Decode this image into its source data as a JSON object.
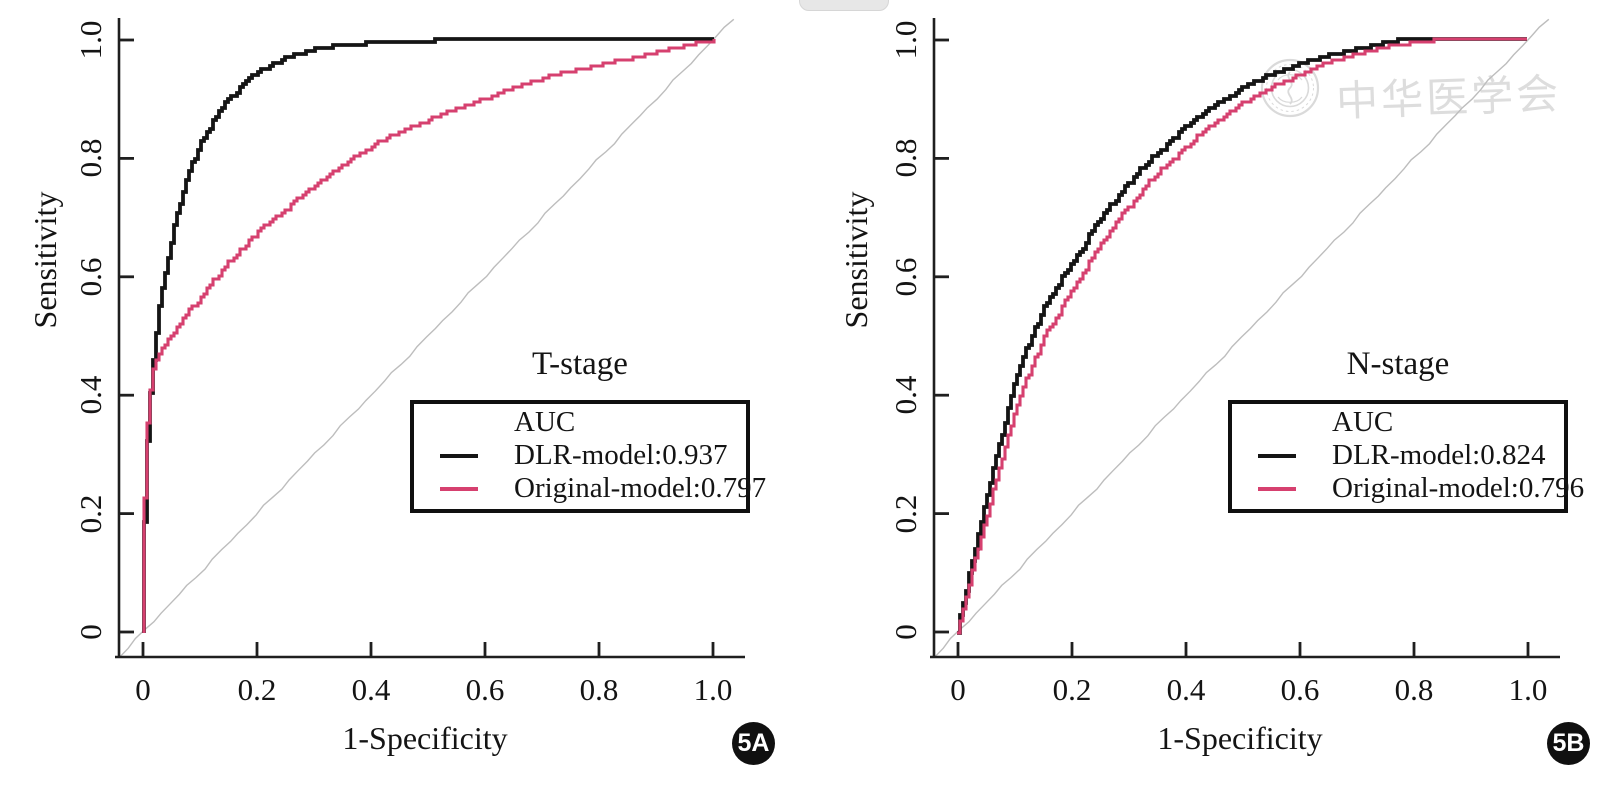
{
  "figure": {
    "panel_badges": [
      "5A",
      "5B"
    ],
    "watermark": {
      "text": "中华医学会",
      "emblem": "circular-society-seal"
    },
    "colors": {
      "axis": "#1f1f1f",
      "diagonal": "#bdbdbd",
      "dlr_curve": "#151515",
      "original_curve": "#d6406f",
      "watermark": "#d9d9d9",
      "badge_bg": "#101010",
      "badge_text": "#ffffff",
      "background": "#ffffff"
    }
  },
  "chart_data": [
    {
      "type": "line",
      "subtype": "roc-curve",
      "title": "T-stage",
      "xlabel": "1-Specificity",
      "ylabel": "Sensitivity",
      "xlim": [
        0,
        1
      ],
      "ylim": [
        0,
        1
      ],
      "grid": false,
      "legend_position": "lower-right",
      "legend_title": "AUC",
      "x_tick_labels": [
        "0",
        "0.2",
        "0.4",
        "0.6",
        "0.8",
        "1.0"
      ],
      "y_tick_labels": [
        "0",
        "0.2",
        "0.4",
        "0.6",
        "0.8",
        "1.0"
      ],
      "reference_line": {
        "from": [
          0,
          0
        ],
        "to": [
          1,
          1
        ],
        "color": "#bdbdbd"
      },
      "series": [
        {
          "name": "DLR-model",
          "auc": 0.937,
          "label": "DLR-model:0.937",
          "color": "#151515",
          "points": [
            [
              0,
              0
            ],
            [
              0.004,
              0.18
            ],
            [
              0.008,
              0.3
            ],
            [
              0.013,
              0.38
            ],
            [
              0.02,
              0.46
            ],
            [
              0.03,
              0.55
            ],
            [
              0.045,
              0.63
            ],
            [
              0.06,
              0.7
            ],
            [
              0.08,
              0.77
            ],
            [
              0.1,
              0.82
            ],
            [
              0.125,
              0.865
            ],
            [
              0.15,
              0.9
            ],
            [
              0.175,
              0.925
            ],
            [
              0.2,
              0.945
            ],
            [
              0.25,
              0.97
            ],
            [
              0.3,
              0.985
            ],
            [
              0.35,
              0.991
            ],
            [
              0.4,
              0.995
            ],
            [
              0.5,
              0.999
            ],
            [
              0.55,
              1
            ],
            [
              1,
              1
            ]
          ]
        },
        {
          "name": "Original-model",
          "auc": 0.797,
          "label": "Original-model:0.797",
          "color": "#d6406f",
          "points": [
            [
              0,
              0
            ],
            [
              0.004,
              0.22
            ],
            [
              0.008,
              0.33
            ],
            [
              0.013,
              0.4
            ],
            [
              0.02,
              0.445
            ],
            [
              0.03,
              0.47
            ],
            [
              0.05,
              0.5
            ],
            [
              0.07,
              0.53
            ],
            [
              0.1,
              0.565
            ],
            [
              0.15,
              0.625
            ],
            [
              0.2,
              0.675
            ],
            [
              0.25,
              0.715
            ],
            [
              0.3,
              0.755
            ],
            [
              0.35,
              0.79
            ],
            [
              0.4,
              0.82
            ],
            [
              0.45,
              0.845
            ],
            [
              0.5,
              0.865
            ],
            [
              0.55,
              0.885
            ],
            [
              0.6,
              0.9
            ],
            [
              0.65,
              0.92
            ],
            [
              0.7,
              0.935
            ],
            [
              0.75,
              0.947
            ],
            [
              0.8,
              0.958
            ],
            [
              0.85,
              0.968
            ],
            [
              0.9,
              0.98
            ],
            [
              0.95,
              0.99
            ],
            [
              1,
              1
            ]
          ]
        }
      ]
    },
    {
      "type": "line",
      "subtype": "roc-curve",
      "title": "N-stage",
      "xlabel": "1-Specificity",
      "ylabel": "Sensitivity",
      "xlim": [
        0,
        1
      ],
      "ylim": [
        0,
        1
      ],
      "grid": false,
      "legend_position": "lower-right",
      "legend_title": "AUC",
      "x_tick_labels": [
        "0",
        "0.2",
        "0.4",
        "0.6",
        "0.8",
        "1.0"
      ],
      "y_tick_labels": [
        "0",
        "0.2",
        "0.4",
        "0.6",
        "0.8",
        "1.0"
      ],
      "reference_line": {
        "from": [
          0,
          0
        ],
        "to": [
          1,
          1
        ],
        "color": "#bdbdbd"
      },
      "series": [
        {
          "name": "DLR-model",
          "auc": 0.824,
          "label": "DLR-model:0.824",
          "color": "#151515",
          "points": [
            [
              0,
              0
            ],
            [
              0.01,
              0.05
            ],
            [
              0.02,
              0.09
            ],
            [
              0.04,
              0.18
            ],
            [
              0.06,
              0.26
            ],
            [
              0.08,
              0.34
            ],
            [
              0.1,
              0.42
            ],
            [
              0.13,
              0.5
            ],
            [
              0.16,
              0.565
            ],
            [
              0.2,
              0.62
            ],
            [
              0.25,
              0.7
            ],
            [
              0.3,
              0.76
            ],
            [
              0.35,
              0.81
            ],
            [
              0.4,
              0.855
            ],
            [
              0.45,
              0.89
            ],
            [
              0.5,
              0.92
            ],
            [
              0.55,
              0.942
            ],
            [
              0.6,
              0.96
            ],
            [
              0.65,
              0.974
            ],
            [
              0.7,
              0.985
            ],
            [
              0.73,
              0.992
            ],
            [
              0.77,
              1
            ],
            [
              1,
              1
            ]
          ]
        },
        {
          "name": "Original-model",
          "auc": 0.796,
          "label": "Original-model:0.796",
          "color": "#d6406f",
          "points": [
            [
              0,
              0
            ],
            [
              0.01,
              0.04
            ],
            [
              0.02,
              0.08
            ],
            [
              0.04,
              0.155
            ],
            [
              0.06,
              0.225
            ],
            [
              0.08,
              0.3
            ],
            [
              0.1,
              0.37
            ],
            [
              0.13,
              0.45
            ],
            [
              0.16,
              0.515
            ],
            [
              0.2,
              0.575
            ],
            [
              0.25,
              0.655
            ],
            [
              0.3,
              0.72
            ],
            [
              0.35,
              0.775
            ],
            [
              0.4,
              0.82
            ],
            [
              0.45,
              0.86
            ],
            [
              0.5,
              0.893
            ],
            [
              0.55,
              0.92
            ],
            [
              0.6,
              0.943
            ],
            [
              0.65,
              0.962
            ],
            [
              0.7,
              0.977
            ],
            [
              0.75,
              0.988
            ],
            [
              0.8,
              0.996
            ],
            [
              0.845,
              1
            ],
            [
              1,
              1
            ]
          ]
        }
      ]
    }
  ]
}
